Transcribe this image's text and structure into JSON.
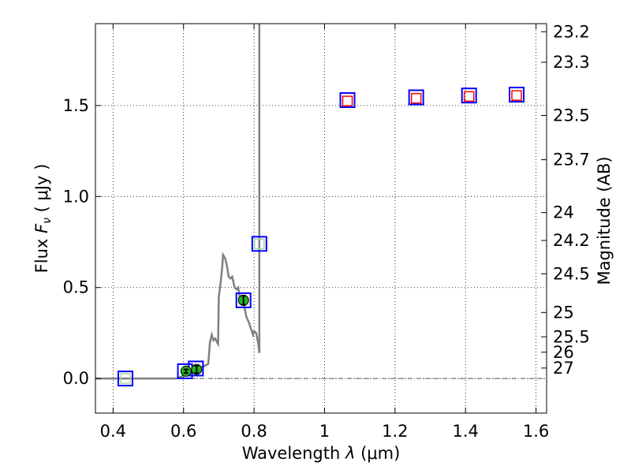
{
  "chart_data": {
    "type": "scatter",
    "xlabel_pre": "Wavelength  ",
    "xlabel_sym": "λ",
    "xlabel_unit": " (μm)",
    "ylabel_pre": "Flux  ",
    "ylabel_sym": "F",
    "ylabel_sub": "ν",
    "ylabel_unit": "  ( μJy )",
    "y2label": "Magnitude (AB)",
    "xlim": [
      0.35,
      1.63
    ],
    "ylim": [
      -0.19,
      1.95
    ],
    "grid": true,
    "x_ticks": [
      {
        "v": 0.4,
        "label": "0.4"
      },
      {
        "v": 0.6,
        "label": "0.6"
      },
      {
        "v": 0.8,
        "label": "0.8"
      },
      {
        "v": 1.0,
        "label": "1"
      },
      {
        "v": 1.2,
        "label": "1.2"
      },
      {
        "v": 1.4,
        "label": "1.4"
      },
      {
        "v": 1.6,
        "label": "1.6"
      }
    ],
    "y_ticks": [
      {
        "v": 0.0,
        "label": "0.0"
      },
      {
        "v": 0.5,
        "label": "0.5"
      },
      {
        "v": 1.0,
        "label": "1.0"
      },
      {
        "v": 1.5,
        "label": "1.5"
      }
    ],
    "mag_ticks": [
      {
        "v": 23.2,
        "label": "23.2"
      },
      {
        "v": 23.3,
        "label": "23.3"
      },
      {
        "v": 23.5,
        "label": "23.5"
      },
      {
        "v": 23.7,
        "label": "23.7"
      },
      {
        "v": 24,
        "label": "24"
      },
      {
        "v": 24.2,
        "label": "24.2"
      },
      {
        "v": 24.5,
        "label": "24.5"
      },
      {
        "v": 25,
        "label": "25"
      },
      {
        "v": 25.5,
        "label": "25.5"
      },
      {
        "v": 26,
        "label": "26"
      },
      {
        "v": 27,
        "label": "27"
      }
    ],
    "model_spectrum": [
      [
        0.35,
        0.0
      ],
      [
        0.58,
        0.0
      ],
      [
        0.59,
        0.008
      ],
      [
        0.6,
        0.015
      ],
      [
        0.62,
        0.03
      ],
      [
        0.64,
        0.05
      ],
      [
        0.66,
        0.07
      ],
      [
        0.67,
        0.08
      ],
      [
        0.675,
        0.2
      ],
      [
        0.68,
        0.24
      ],
      [
        0.685,
        0.21
      ],
      [
        0.69,
        0.22
      ],
      [
        0.695,
        0.2
      ],
      [
        0.698,
        0.19
      ],
      [
        0.7,
        0.45
      ],
      [
        0.705,
        0.52
      ],
      [
        0.71,
        0.62
      ],
      [
        0.712,
        0.68
      ],
      [
        0.718,
        0.66
      ],
      [
        0.723,
        0.62
      ],
      [
        0.728,
        0.56
      ],
      [
        0.733,
        0.55
      ],
      [
        0.738,
        0.56
      ],
      [
        0.745,
        0.5
      ],
      [
        0.75,
        0.49
      ],
      [
        0.755,
        0.5
      ],
      [
        0.76,
        0.44
      ],
      [
        0.77,
        0.42
      ],
      [
        0.778,
        0.34
      ],
      [
        0.785,
        0.31
      ],
      [
        0.79,
        0.28
      ],
      [
        0.797,
        0.24
      ],
      [
        0.8,
        0.26
      ],
      [
        0.806,
        0.25
      ],
      [
        0.812,
        0.19
      ],
      [
        0.815,
        0.14
      ],
      [
        0.815,
        1.95
      ]
    ],
    "model_points": [
      {
        "x": 0.435,
        "y": 0.0
      },
      {
        "x": 0.604,
        "y": 0.04
      },
      {
        "x": 0.635,
        "y": 0.055
      },
      {
        "x": 0.77,
        "y": 0.43
      },
      {
        "x": 0.815,
        "y": 0.74
      },
      {
        "x": 1.065,
        "y": 1.53
      },
      {
        "x": 1.26,
        "y": 1.545
      },
      {
        "x": 1.41,
        "y": 1.555
      },
      {
        "x": 1.545,
        "y": 1.56
      }
    ],
    "fit_points": [
      {
        "x": 0.435,
        "y": 0.0,
        "color": "green"
      },
      {
        "x": 0.815,
        "y": 0.74,
        "color": "green"
      },
      {
        "x": 1.065,
        "y": 1.525,
        "color": "red"
      },
      {
        "x": 1.26,
        "y": 1.54,
        "color": "red"
      },
      {
        "x": 1.41,
        "y": 1.55,
        "color": "red"
      },
      {
        "x": 1.545,
        "y": 1.555,
        "color": "red"
      }
    ],
    "observed": [
      {
        "x": 0.607,
        "y": 0.04,
        "err": 0.01
      },
      {
        "x": 0.637,
        "y": 0.05,
        "err": 0.02
      },
      {
        "x": 0.77,
        "y": 0.43,
        "err": 0.025
      }
    ],
    "colors": {
      "spectrum": "#808080",
      "model_square": "#0000ff",
      "fit_green": "#aad5aa",
      "fit_red": "#ff0000",
      "observed_fill": "#22b322",
      "grid": "#000000"
    }
  }
}
